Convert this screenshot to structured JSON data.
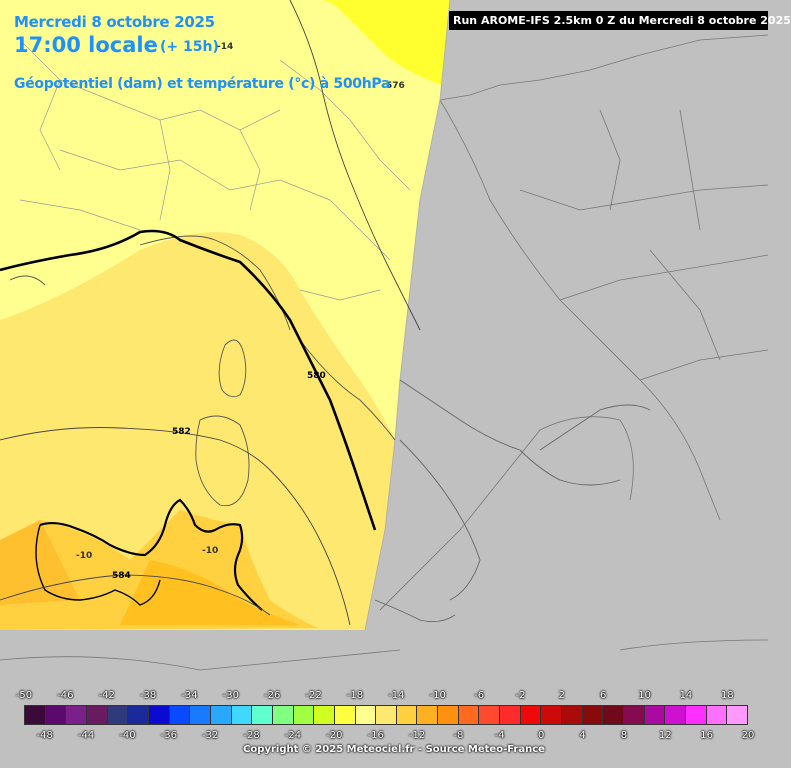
{
  "header": {
    "date": "Mercredi 8 octobre 2025",
    "time": "17:00 locale",
    "offset": "(+ 15h)",
    "parameter": "Géopotentiel (dam) et température (°c) à 500hPa",
    "run": "Run AROME-IFS 2.5km 0 Z du Mercredi 8 octobre 2025"
  },
  "contour_labels": {
    "geopotential": [
      "580",
      "582",
      "584"
    ],
    "temperature": [
      "-14",
      "-10",
      "-10"
    ],
    "top_right": "576"
  },
  "legend": {
    "upper_ticks": [
      "-50",
      "-46",
      "-42",
      "-38",
      "-34",
      "-30",
      "-26",
      "-22",
      "-18",
      "-14",
      "-10",
      "-6",
      "-2",
      "2",
      "6",
      "10",
      "14",
      "18"
    ],
    "lower_ticks": [
      "-48",
      "-44",
      "-40",
      "-36",
      "-32",
      "-28",
      "-24",
      "-20",
      "-16",
      "-12",
      "-8",
      "-4",
      "0",
      "4",
      "8",
      "12",
      "16",
      "20"
    ],
    "colors": [
      "#3a0a3a",
      "#5b0a6b",
      "#7b1f8b",
      "#6a1a5e",
      "#2e3a7a",
      "#1a2a9a",
      "#0a0ad0",
      "#0a4aff",
      "#1a7aff",
      "#28a8ff",
      "#40d8ff",
      "#60ffd0",
      "#80ff80",
      "#a0ff40",
      "#d0ff20",
      "#ffff40",
      "#ffff90",
      "#ffe870",
      "#ffd040",
      "#ffb020",
      "#ff9010",
      "#ff6a20",
      "#ff4a30",
      "#ff2a2a",
      "#ee0a0a",
      "#cc0a0a",
      "#aa0a0a",
      "#880a0a",
      "#700a1a",
      "#860a50",
      "#aa0aa0",
      "#d010d0",
      "#ff30ff",
      "#ff70ff",
      "#ff99ff"
    ]
  },
  "copyright": "Copyright © 2025 Meteociel.fr - Source Meteo-France"
}
